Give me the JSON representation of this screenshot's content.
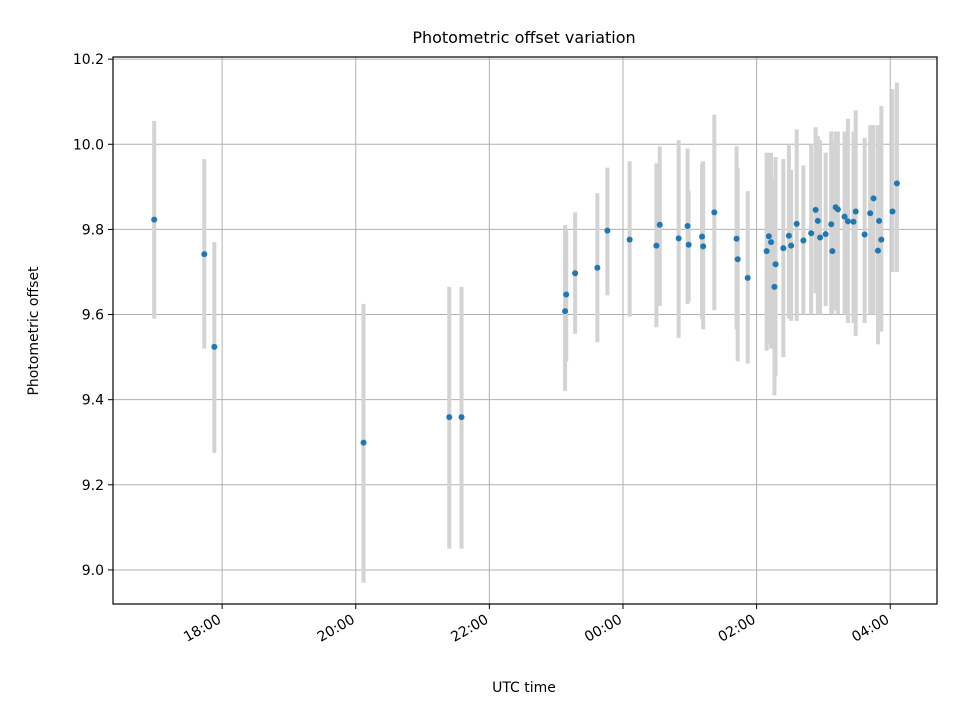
{
  "chart_data": {
    "type": "scatter",
    "title": "Photometric offset variation",
    "xlabel": "UTC time",
    "ylabel": "Photometric offset",
    "xlim": [
      "16:22",
      "04:42"
    ],
    "ylim": [
      8.92,
      10.205
    ],
    "grid": true,
    "x_ticks": [
      "18:00",
      "20:00",
      "22:00",
      "00:00",
      "02:00",
      "04:00"
    ],
    "y_ticks": [
      9.0,
      9.2,
      9.4,
      9.6,
      9.8,
      10.0,
      10.2
    ],
    "y_tick_labels": [
      "9.0",
      "9.2",
      "9.4",
      "9.6",
      "9.8",
      "10.0",
      "10.2"
    ],
    "colors": {
      "points": "#1f77b4",
      "error_bars": "#d3d3d3",
      "grid": "#b0b0b0"
    },
    "series": [
      {
        "marker": "point",
        "x": [
          "16:59",
          "17:44",
          "17:53",
          "20:07",
          "21:24",
          "21:35",
          "23:08",
          "23:09",
          "23:17",
          "23:37",
          "23:46",
          "00:06",
          "00:30",
          "00:33",
          "00:50",
          "00:58",
          "00:59",
          "01:11",
          "01:12",
          "01:22",
          "01:42",
          "01:43",
          "01:52",
          "02:09",
          "02:11",
          "02:13",
          "02:16",
          "02:17",
          "02:24",
          "02:29",
          "02:31",
          "02:36",
          "02:42",
          "02:49",
          "02:53",
          "02:55",
          "02:57",
          "03:02",
          "03:07",
          "03:08",
          "03:11",
          "03:13",
          "03:19",
          "03:22",
          "03:27",
          "03:29",
          "03:37",
          "03:42",
          "03:45",
          "03:49",
          "03:50",
          "03:52",
          "04:02",
          "04:06"
        ],
        "y": [
          9.823,
          9.742,
          9.524,
          9.299,
          9.359,
          9.359,
          9.608,
          9.647,
          9.697,
          9.71,
          9.797,
          9.776,
          9.762,
          9.811,
          9.779,
          9.808,
          9.764,
          9.783,
          9.76,
          9.84,
          9.778,
          9.73,
          9.686,
          9.749,
          9.784,
          9.77,
          9.665,
          9.718,
          9.756,
          9.785,
          9.762,
          9.813,
          9.774,
          9.791,
          9.846,
          9.82,
          9.781,
          9.789,
          9.812,
          9.749,
          9.852,
          9.847,
          9.83,
          9.819,
          9.818,
          9.842,
          9.788,
          9.838,
          9.873,
          9.75,
          9.82,
          9.776,
          9.842,
          9.908
        ],
        "y_low": [
          9.59,
          9.52,
          9.275,
          8.97,
          9.05,
          9.05,
          9.42,
          9.49,
          9.555,
          9.535,
          9.645,
          9.595,
          9.57,
          9.62,
          9.545,
          9.625,
          9.63,
          9.59,
          9.565,
          9.61,
          9.565,
          9.49,
          9.485,
          9.515,
          9.53,
          9.52,
          9.41,
          9.455,
          9.5,
          9.59,
          9.585,
          9.585,
          9.6,
          9.6,
          9.65,
          9.6,
          9.6,
          9.62,
          9.6,
          9.6,
          9.61,
          9.6,
          9.6,
          9.58,
          9.58,
          9.55,
          9.58,
          9.6,
          9.6,
          9.53,
          9.56,
          9.56,
          9.7,
          9.7
        ],
        "y_high": [
          10.055,
          9.965,
          9.77,
          9.625,
          9.665,
          9.665,
          9.81,
          9.8,
          9.84,
          9.885,
          9.945,
          9.96,
          9.955,
          9.995,
          10.01,
          9.99,
          9.89,
          9.955,
          9.96,
          10.07,
          9.995,
          9.945,
          9.89,
          9.98,
          9.98,
          9.98,
          9.92,
          9.97,
          9.965,
          10.0,
          9.94,
          10.035,
          9.95,
          10.0,
          10.04,
          10.02,
          10.01,
          9.98,
          10.03,
          10.01,
          10.03,
          10.03,
          10.03,
          10.06,
          10.03,
          10.08,
          10.015,
          10.045,
          10.045,
          10.045,
          10.0,
          10.09,
          10.13,
          10.145
        ]
      }
    ]
  }
}
